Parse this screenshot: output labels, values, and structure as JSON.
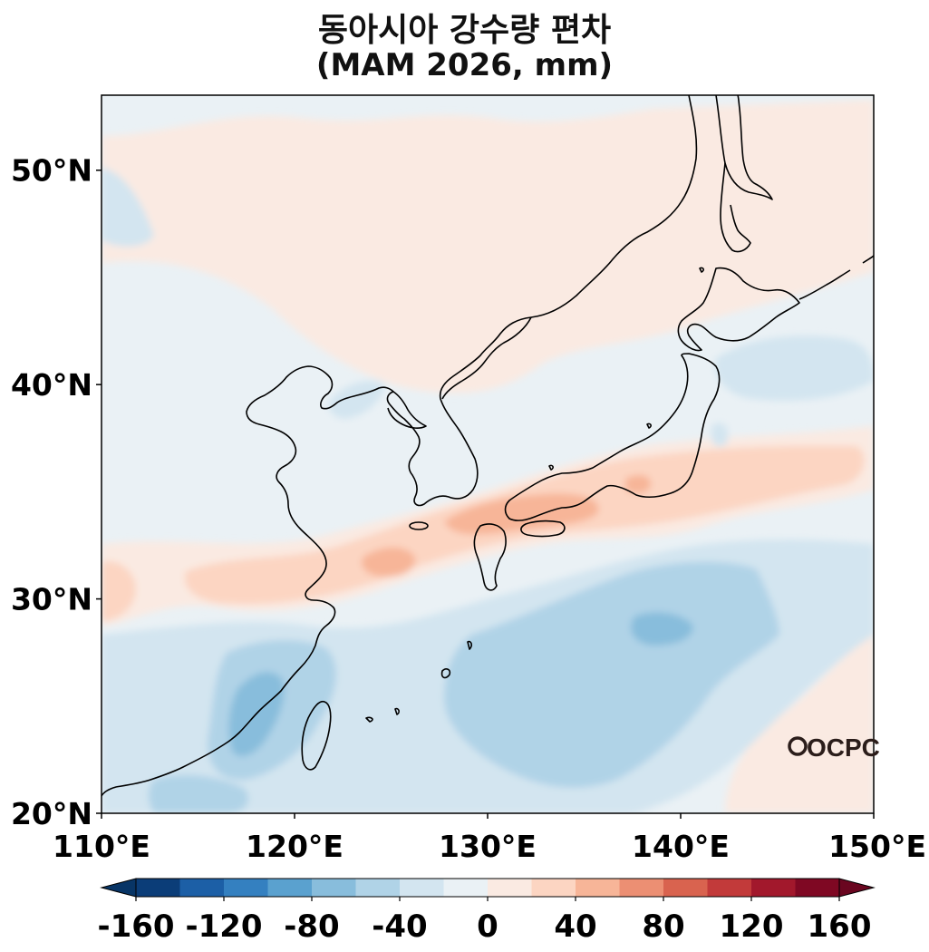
{
  "title": "동아시아 강수량 편차",
  "subtitle": "(MAM 2026, mm)",
  "logo_text": "OCPC",
  "map": {
    "type": "filled-contour anomaly map",
    "projection": "PlateCarree",
    "lon_range": [
      110,
      150
    ],
    "lat_range": [
      20,
      53.5
    ],
    "coastlines": true,
    "x_ticks": [
      "110°E",
      "120°E",
      "130°E",
      "140°E",
      "150°E"
    ],
    "y_ticks": [
      "20°N",
      "30°N",
      "40°N",
      "50°N"
    ]
  },
  "colorbar": {
    "orientation": "horizontal",
    "extend": "both",
    "tick_labels": [
      "-160",
      "-120",
      "-80",
      "-40",
      "0",
      "40",
      "80",
      "120",
      "160"
    ],
    "levels": [
      -160,
      -140,
      -120,
      -100,
      -80,
      -60,
      -40,
      -20,
      0,
      20,
      40,
      60,
      80,
      100,
      120,
      140,
      160
    ],
    "colors": [
      "#0b3d78",
      "#1c5fa6",
      "#3480c0",
      "#5aa1cf",
      "#88bddc",
      "#b0d3e7",
      "#d3e5f0",
      "#eaf1f5",
      "#faeae2",
      "#fcd5c2",
      "#f7b598",
      "#ec8f73",
      "#d9634f",
      "#c23a3a",
      "#a2182c",
      "#7f0823"
    ],
    "under_color": "#083566",
    "over_color": "#6a0620"
  }
}
